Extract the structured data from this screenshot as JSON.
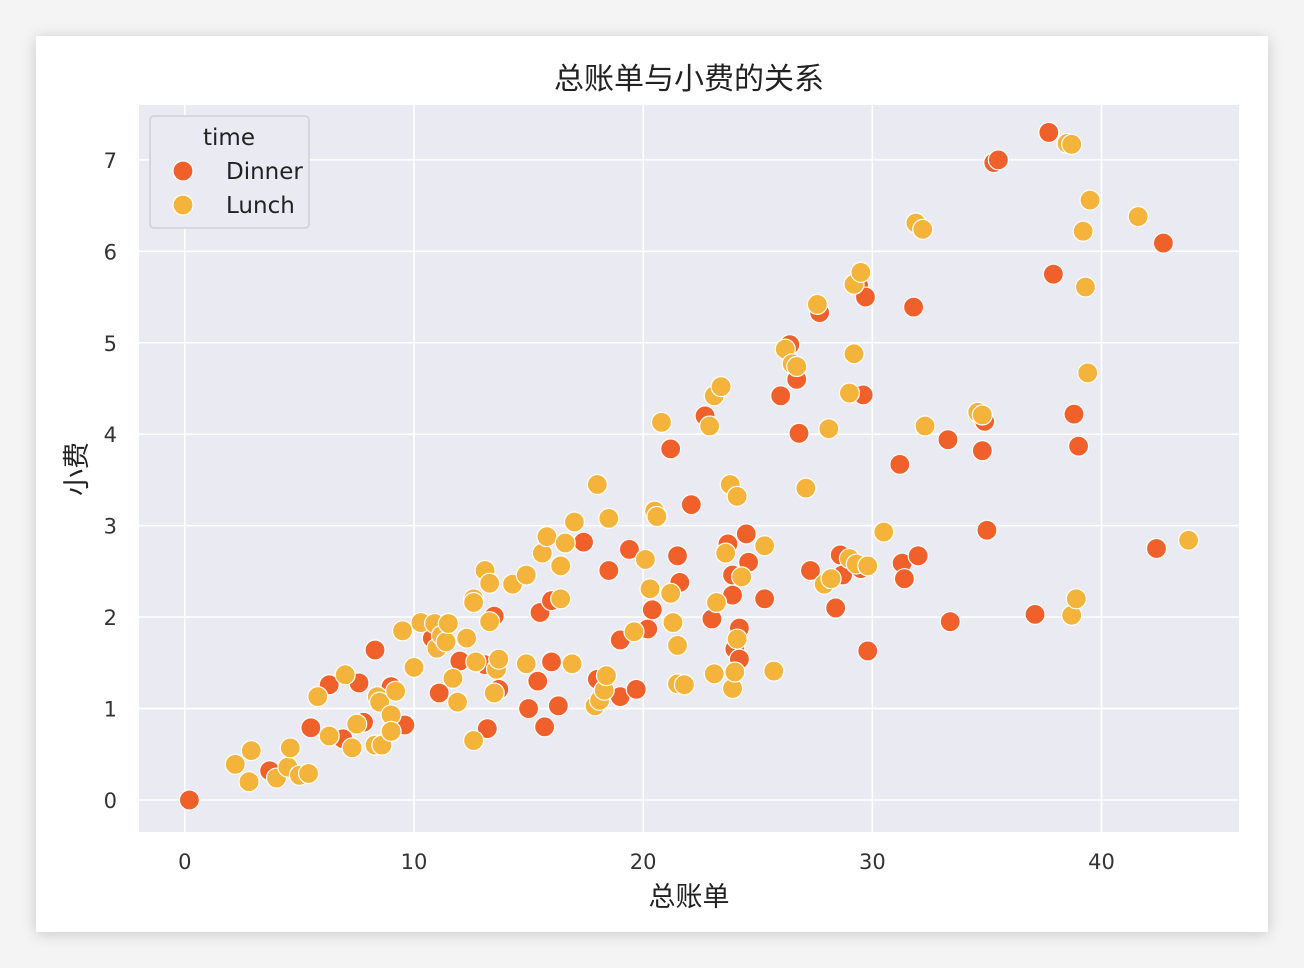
{
  "chart_data": {
    "type": "scatter",
    "title": "总账单与小费的关系",
    "xlabel": "总账单",
    "ylabel": "小费",
    "xlim": [
      -2,
      46
    ],
    "ylim": [
      -0.35,
      7.6
    ],
    "xticks": [
      0,
      10,
      20,
      30,
      40
    ],
    "yticks": [
      0,
      1,
      2,
      3,
      4,
      5,
      6,
      7
    ],
    "grid": true,
    "legend": {
      "title": "time",
      "placement": "top-left"
    },
    "series": [
      {
        "name": "Dinner",
        "color": "#f0602a",
        "points": [
          [
            0.2,
            0.0
          ],
          [
            3.7,
            0.32
          ],
          [
            5.5,
            0.79
          ],
          [
            6.3,
            1.26
          ],
          [
            6.9,
            0.67
          ],
          [
            7.6,
            1.28
          ],
          [
            7.8,
            0.85
          ],
          [
            8.3,
            1.64
          ],
          [
            9.0,
            1.24
          ],
          [
            9.6,
            0.82
          ],
          [
            10.8,
            1.77
          ],
          [
            11.1,
            1.17
          ],
          [
            12.0,
            1.52
          ],
          [
            13.1,
            1.48
          ],
          [
            13.5,
            2.01
          ],
          [
            13.7,
            1.21
          ],
          [
            13.2,
            0.78
          ],
          [
            15.0,
            1.0
          ],
          [
            15.4,
            1.3
          ],
          [
            15.5,
            2.05
          ],
          [
            15.7,
            0.8
          ],
          [
            16.0,
            2.18
          ],
          [
            16.0,
            1.51
          ],
          [
            16.3,
            1.03
          ],
          [
            17.4,
            2.82
          ],
          [
            18.0,
            1.32
          ],
          [
            18.5,
            2.51
          ],
          [
            19.0,
            1.75
          ],
          [
            19.0,
            1.13
          ],
          [
            19.4,
            2.74
          ],
          [
            19.7,
            1.21
          ],
          [
            20.2,
            1.87
          ],
          [
            20.4,
            2.08
          ],
          [
            21.2,
            3.84
          ],
          [
            21.5,
            2.67
          ],
          [
            21.6,
            2.38
          ],
          [
            22.1,
            3.23
          ],
          [
            22.7,
            4.2
          ],
          [
            23.0,
            1.98
          ],
          [
            23.7,
            2.8
          ],
          [
            23.9,
            2.46
          ],
          [
            23.9,
            2.24
          ],
          [
            24.0,
            1.65
          ],
          [
            24.2,
            1.88
          ],
          [
            24.2,
            1.54
          ],
          [
            24.5,
            2.91
          ],
          [
            24.6,
            2.6
          ],
          [
            25.3,
            2.2
          ],
          [
            26.0,
            4.42
          ],
          [
            26.4,
            4.98
          ],
          [
            26.7,
            4.6
          ],
          [
            26.8,
            4.01
          ],
          [
            27.3,
            2.51
          ],
          [
            27.7,
            5.33
          ],
          [
            28.4,
            2.1
          ],
          [
            28.6,
            2.68
          ],
          [
            28.7,
            2.46
          ],
          [
            29.4,
            5.63
          ],
          [
            29.5,
            2.53
          ],
          [
            29.6,
            4.43
          ],
          [
            29.7,
            5.5
          ],
          [
            29.8,
            1.63
          ],
          [
            31.2,
            3.67
          ],
          [
            31.3,
            2.59
          ],
          [
            31.4,
            2.42
          ],
          [
            31.8,
            5.39
          ],
          [
            32.0,
            2.67
          ],
          [
            33.3,
            3.94
          ],
          [
            33.4,
            1.95
          ],
          [
            34.8,
            3.82
          ],
          [
            34.9,
            4.14
          ],
          [
            35.0,
            2.95
          ],
          [
            35.3,
            6.97
          ],
          [
            35.5,
            7.0
          ],
          [
            37.1,
            2.03
          ],
          [
            37.7,
            7.3
          ],
          [
            37.9,
            5.75
          ],
          [
            38.8,
            4.22
          ],
          [
            39.0,
            3.87
          ],
          [
            42.4,
            2.75
          ],
          [
            42.7,
            6.09
          ]
        ]
      },
      {
        "name": "Lunch",
        "color": "#f4b43c",
        "points": [
          [
            2.2,
            0.39
          ],
          [
            2.8,
            0.2
          ],
          [
            2.9,
            0.54
          ],
          [
            4.0,
            0.24
          ],
          [
            4.5,
            0.36
          ],
          [
            4.6,
            0.57
          ],
          [
            5.0,
            0.27
          ],
          [
            5.4,
            0.29
          ],
          [
            5.8,
            1.13
          ],
          [
            6.3,
            0.7
          ],
          [
            7.0,
            1.37
          ],
          [
            7.3,
            0.57
          ],
          [
            7.5,
            0.83
          ],
          [
            8.3,
            0.6
          ],
          [
            8.4,
            1.13
          ],
          [
            8.5,
            1.07
          ],
          [
            8.6,
            0.6
          ],
          [
            9.0,
            0.93
          ],
          [
            9.0,
            0.75
          ],
          [
            9.2,
            1.19
          ],
          [
            9.5,
            1.85
          ],
          [
            10.0,
            1.45
          ],
          [
            10.3,
            1.94
          ],
          [
            10.9,
            1.93
          ],
          [
            11.0,
            1.66
          ],
          [
            11.2,
            1.8
          ],
          [
            11.4,
            1.73
          ],
          [
            11.5,
            1.93
          ],
          [
            11.7,
            1.33
          ],
          [
            11.9,
            1.07
          ],
          [
            12.3,
            1.77
          ],
          [
            12.6,
            0.65
          ],
          [
            12.6,
            2.2
          ],
          [
            12.6,
            2.16
          ],
          [
            12.7,
            1.51
          ],
          [
            13.1,
            2.51
          ],
          [
            13.3,
            2.37
          ],
          [
            13.3,
            1.95
          ],
          [
            13.5,
            1.17
          ],
          [
            13.6,
            1.43
          ],
          [
            13.7,
            1.54
          ],
          [
            14.3,
            2.36
          ],
          [
            14.9,
            2.46
          ],
          [
            14.9,
            1.49
          ],
          [
            15.6,
            2.7
          ],
          [
            15.8,
            2.88
          ],
          [
            16.4,
            2.56
          ],
          [
            16.4,
            2.2
          ],
          [
            16.6,
            2.81
          ],
          [
            16.9,
            1.49
          ],
          [
            17.0,
            3.04
          ],
          [
            17.9,
            1.03
          ],
          [
            18.0,
            3.45
          ],
          [
            18.1,
            1.09
          ],
          [
            18.3,
            1.2
          ],
          [
            18.4,
            1.36
          ],
          [
            18.5,
            3.08
          ],
          [
            19.6,
            1.84
          ],
          [
            20.1,
            2.63
          ],
          [
            20.3,
            2.31
          ],
          [
            20.5,
            3.16
          ],
          [
            20.6,
            3.1
          ],
          [
            20.8,
            4.13
          ],
          [
            21.2,
            2.26
          ],
          [
            21.3,
            1.94
          ],
          [
            21.5,
            1.69
          ],
          [
            21.5,
            1.27
          ],
          [
            21.8,
            1.26
          ],
          [
            22.9,
            4.09
          ],
          [
            23.1,
            1.38
          ],
          [
            23.1,
            4.42
          ],
          [
            23.2,
            2.16
          ],
          [
            23.4,
            4.52
          ],
          [
            23.6,
            2.7
          ],
          [
            23.8,
            3.45
          ],
          [
            23.9,
            1.22
          ],
          [
            24.0,
            1.4
          ],
          [
            24.1,
            1.76
          ],
          [
            24.1,
            3.32
          ],
          [
            24.3,
            2.44
          ],
          [
            25.3,
            2.78
          ],
          [
            25.7,
            1.41
          ],
          [
            26.2,
            4.93
          ],
          [
            26.5,
            4.77
          ],
          [
            26.7,
            4.74
          ],
          [
            27.1,
            3.41
          ],
          [
            27.6,
            5.42
          ],
          [
            27.9,
            2.36
          ],
          [
            28.1,
            4.06
          ],
          [
            28.2,
            2.42
          ],
          [
            29.0,
            2.64
          ],
          [
            29.0,
            4.45
          ],
          [
            29.2,
            5.64
          ],
          [
            29.2,
            4.88
          ],
          [
            29.3,
            2.58
          ],
          [
            29.5,
            5.77
          ],
          [
            29.8,
            2.56
          ],
          [
            30.5,
            2.93
          ],
          [
            31.9,
            6.31
          ],
          [
            32.2,
            6.24
          ],
          [
            32.3,
            4.09
          ],
          [
            34.6,
            4.24
          ],
          [
            34.8,
            4.21
          ],
          [
            38.5,
            7.18
          ],
          [
            38.7,
            7.17
          ],
          [
            38.7,
            2.02
          ],
          [
            38.9,
            2.2
          ],
          [
            39.2,
            6.22
          ],
          [
            39.3,
            5.61
          ],
          [
            39.4,
            4.67
          ],
          [
            39.5,
            6.56
          ],
          [
            41.6,
            6.38
          ],
          [
            43.8,
            2.84
          ]
        ]
      }
    ]
  }
}
